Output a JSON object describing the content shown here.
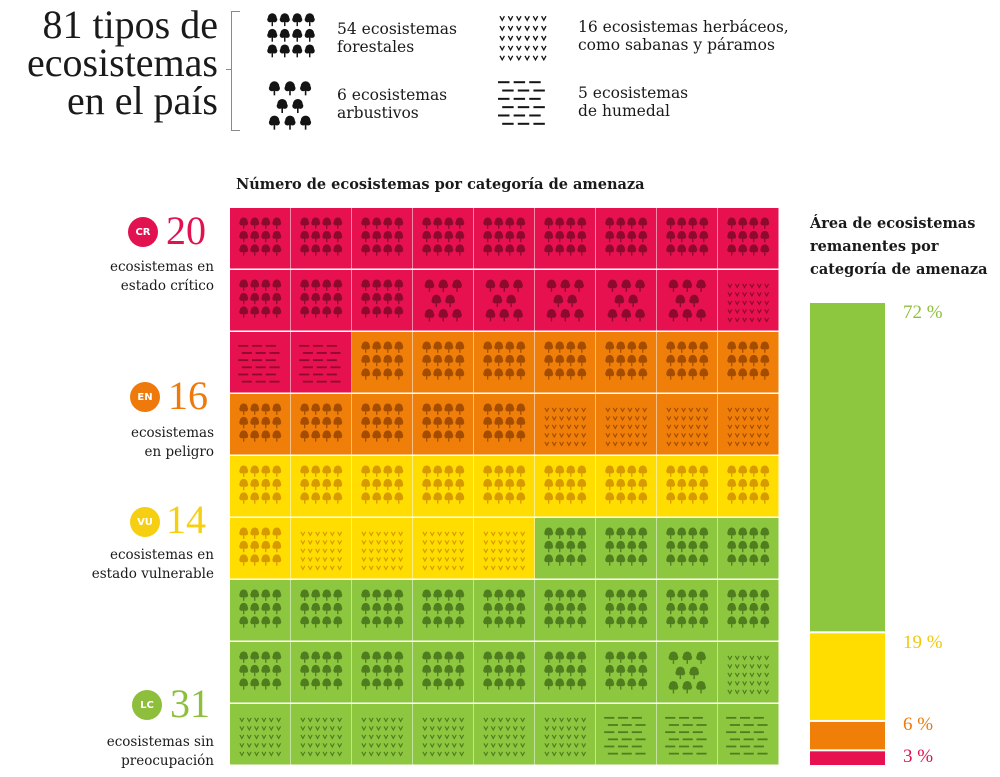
{
  "header": {
    "title_lines": [
      "81 tipos de",
      "ecosistemas",
      "en el país"
    ],
    "legend": [
      {
        "key": "forest",
        "icon": "forest-icon",
        "line1": "54 ecosistemas",
        "line2": "forestales"
      },
      {
        "key": "shrub",
        "icon": "shrub-icon",
        "line1": "6 ecosistemas",
        "line2": "arbustivos"
      },
      {
        "key": "herb",
        "icon": "grass-icon",
        "line1": "16 ecosistemas herbáceos,",
        "line2": "como sabanas y páramos"
      },
      {
        "key": "wetland",
        "icon": "wetland-icon",
        "line1": "5 ecosistemas",
        "line2": "de humedal"
      }
    ]
  },
  "chart_data": [
    {
      "type": "table",
      "title": "Número de ecosistemas por categoría de amenaza",
      "columns": 9,
      "rows": 9,
      "cells": [
        {
          "category": "CR",
          "type": "forest",
          "count": 12
        },
        {
          "category": "CR",
          "type": "shrub",
          "count": 5
        },
        {
          "category": "CR",
          "type": "herb",
          "count": 1
        },
        {
          "category": "CR",
          "type": "wetland",
          "count": 2
        },
        {
          "category": "EN",
          "type": "forest",
          "count": 12
        },
        {
          "category": "EN",
          "type": "herb",
          "count": 4
        },
        {
          "category": "VU",
          "type": "forest",
          "count": 10
        },
        {
          "category": "VU",
          "type": "herb",
          "count": 4
        },
        {
          "category": "LC",
          "type": "forest",
          "count": 20
        },
        {
          "category": "LC",
          "type": "shrub",
          "count": 1
        },
        {
          "category": "LC",
          "type": "herb",
          "count": 7
        },
        {
          "category": "LC",
          "type": "wetland",
          "count": 3
        }
      ],
      "categories": [
        {
          "code": "CR",
          "count": "20",
          "desc_line1": "ecosistemas en",
          "desc_line2": "estado crítico",
          "color": "#e1124f"
        },
        {
          "code": "EN",
          "count": "16",
          "desc_line1": "ecosistemas",
          "desc_line2": "en peligro",
          "color": "#ee7a0c"
        },
        {
          "code": "VU",
          "count": "14",
          "desc_line1": "ecosistemas en",
          "desc_line2": "estado vulnerable",
          "color": "#f6cf12"
        },
        {
          "code": "LC",
          "count": "31",
          "desc_line1": "ecosistemas sin",
          "desc_line2": "preocupación",
          "color": "#8dbf3c"
        }
      ]
    },
    {
      "type": "bar",
      "title_lines": [
        "Área de ecosistemas",
        "remanentes por",
        "categoría de amenaza"
      ],
      "stacked": true,
      "segments": [
        {
          "category": "LC",
          "value": 72,
          "label": "72 %",
          "color": "#8dc63f",
          "label_color": "#8dbf3c"
        },
        {
          "category": "VU",
          "value": 19,
          "label": "19 %",
          "color": "#ffdd00",
          "label_color": "#f2c70f"
        },
        {
          "category": "EN",
          "value": 6,
          "label": "6 %",
          "color": "#f07f09",
          "label_color": "#ee7a0c"
        },
        {
          "category": "CR",
          "value": 3,
          "label": "3 %",
          "color": "#e8114f",
          "label_color": "#e1124f"
        }
      ]
    }
  ],
  "colors": {
    "CR": "#e8114f",
    "EN": "#f07f09",
    "VU": "#ffdd00",
    "LC": "#8dc63f",
    "CR_icon": "#8c0a2e",
    "EN_icon": "#a44d00",
    "VU_icon": "#d79a00",
    "LC_icon": "#4f7d1f"
  }
}
